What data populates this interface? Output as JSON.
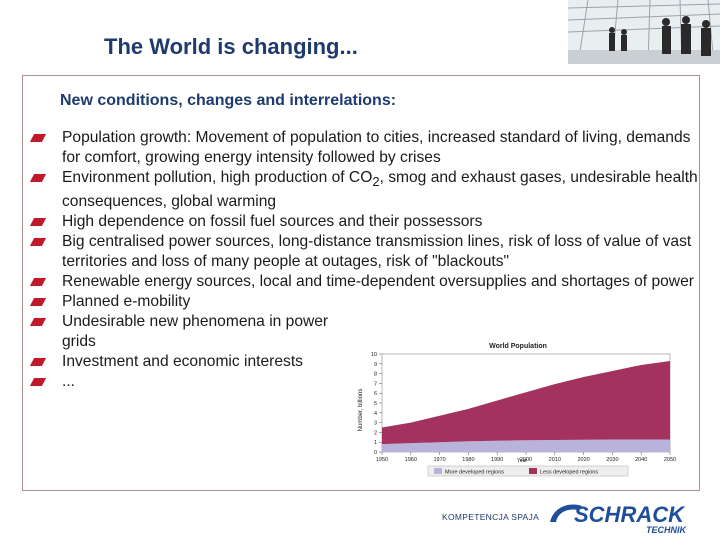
{
  "slide": {
    "title": "The World is changing...",
    "subtitle": "New conditions, changes and interrelations:",
    "bullets": [
      {
        "text": "Population growth: Movement of population to cities, increased standard of living, demands for comfort, growing energy intensity followed by crises"
      },
      {
        "pre": "Environment pollution, high production of CO",
        "sub": "2",
        "post": ", smog and exhaust gases, undesirable health consequences, global warming"
      },
      {
        "text": "High dependence on fossil fuel sources and their possessors"
      },
      {
        "text": "Big centralised power sources, long-distance transmission lines, risk of loss of value of vast territories and loss of many people at outages, risk of \"blackouts\""
      },
      {
        "text": "Renewable energy sources, local and time-dependent oversupplies and shortages of power"
      },
      {
        "text": "Planned e-mobility"
      },
      {
        "text": "Undesirable new phenomena in power grids"
      },
      {
        "text": "Investment and economic interests"
      },
      {
        "text": "..."
      }
    ],
    "bullet_color": "#c01a2a",
    "title_color": "#1f3a6e"
  },
  "chart_data": {
    "type": "area",
    "title": "World Population",
    "ylabel": "Number, billions",
    "xlabel": "Year",
    "x": [
      1950,
      1960,
      1970,
      1980,
      1990,
      2000,
      2010,
      2020,
      2030,
      2040,
      2050
    ],
    "ylim": [
      0,
      10
    ],
    "y_ticks": [
      0,
      1,
      2,
      3,
      4,
      5,
      6,
      7,
      8,
      9,
      10
    ],
    "series": [
      {
        "name": "More developed regions",
        "values": [
          0.8,
          0.9,
          1.0,
          1.1,
          1.15,
          1.2,
          1.23,
          1.25,
          1.27,
          1.28,
          1.28
        ],
        "color": "#b9b3dc"
      },
      {
        "name": "Less developed regions",
        "values": [
          1.7,
          2.1,
          2.7,
          3.3,
          4.1,
          4.9,
          5.7,
          6.4,
          7.0,
          7.6,
          8.0
        ],
        "color": "#a3325f"
      }
    ],
    "legend_position": "bottom"
  },
  "footer": {
    "slogan": "KOMPETENCJA SPAJA",
    "logo_main": "SCHRACK",
    "logo_sub": "TECHNIK",
    "logo_color": "#1f4e9b"
  },
  "photo": {
    "icon": "business-people-photo"
  }
}
